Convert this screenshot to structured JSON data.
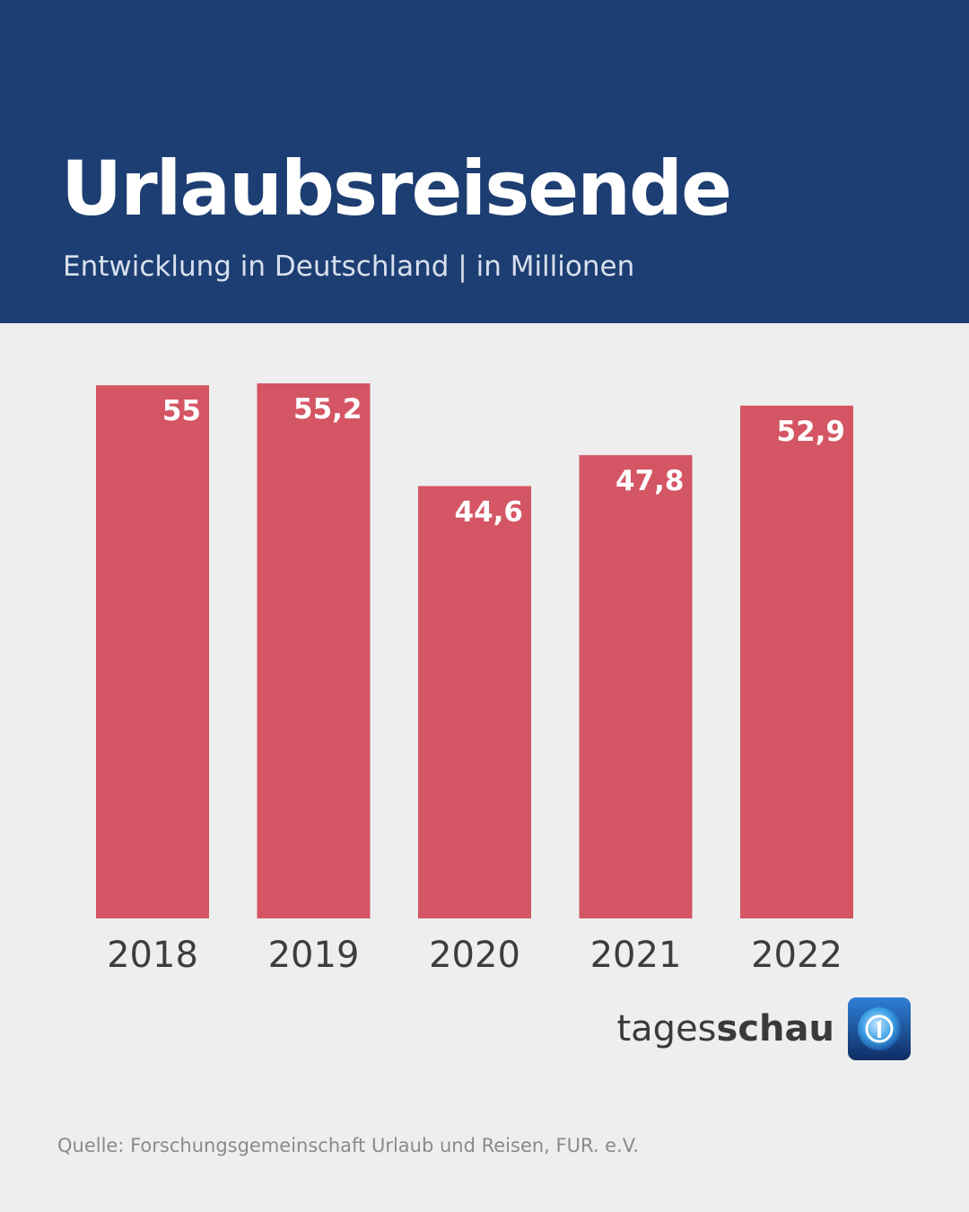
{
  "header": {
    "title": "Urlaubsreisende",
    "subtitle": "Entwicklung in Deutschland | in Millionen"
  },
  "brand": {
    "name_light": "tages",
    "name_bold": "schau",
    "logo_icon": "tagesschau-logo-icon"
  },
  "source": "Quelle: Forschungsgemeinschaft Urlaub und Reisen, FUR. e.V.",
  "colors": {
    "header_background": "#1d3e72",
    "bar": "#d45563",
    "background": "#eeeeee"
  },
  "chart_data": {
    "type": "bar",
    "categories": [
      "2018",
      "2019",
      "2020",
      "2021",
      "2022"
    ],
    "values": [
      55,
      55.2,
      44.6,
      47.8,
      52.9
    ],
    "value_labels": [
      "55",
      "55,2",
      "44,6",
      "47,8",
      "52,9"
    ],
    "ylim": [
      0,
      55.2
    ],
    "grid": false,
    "legend": "none"
  }
}
